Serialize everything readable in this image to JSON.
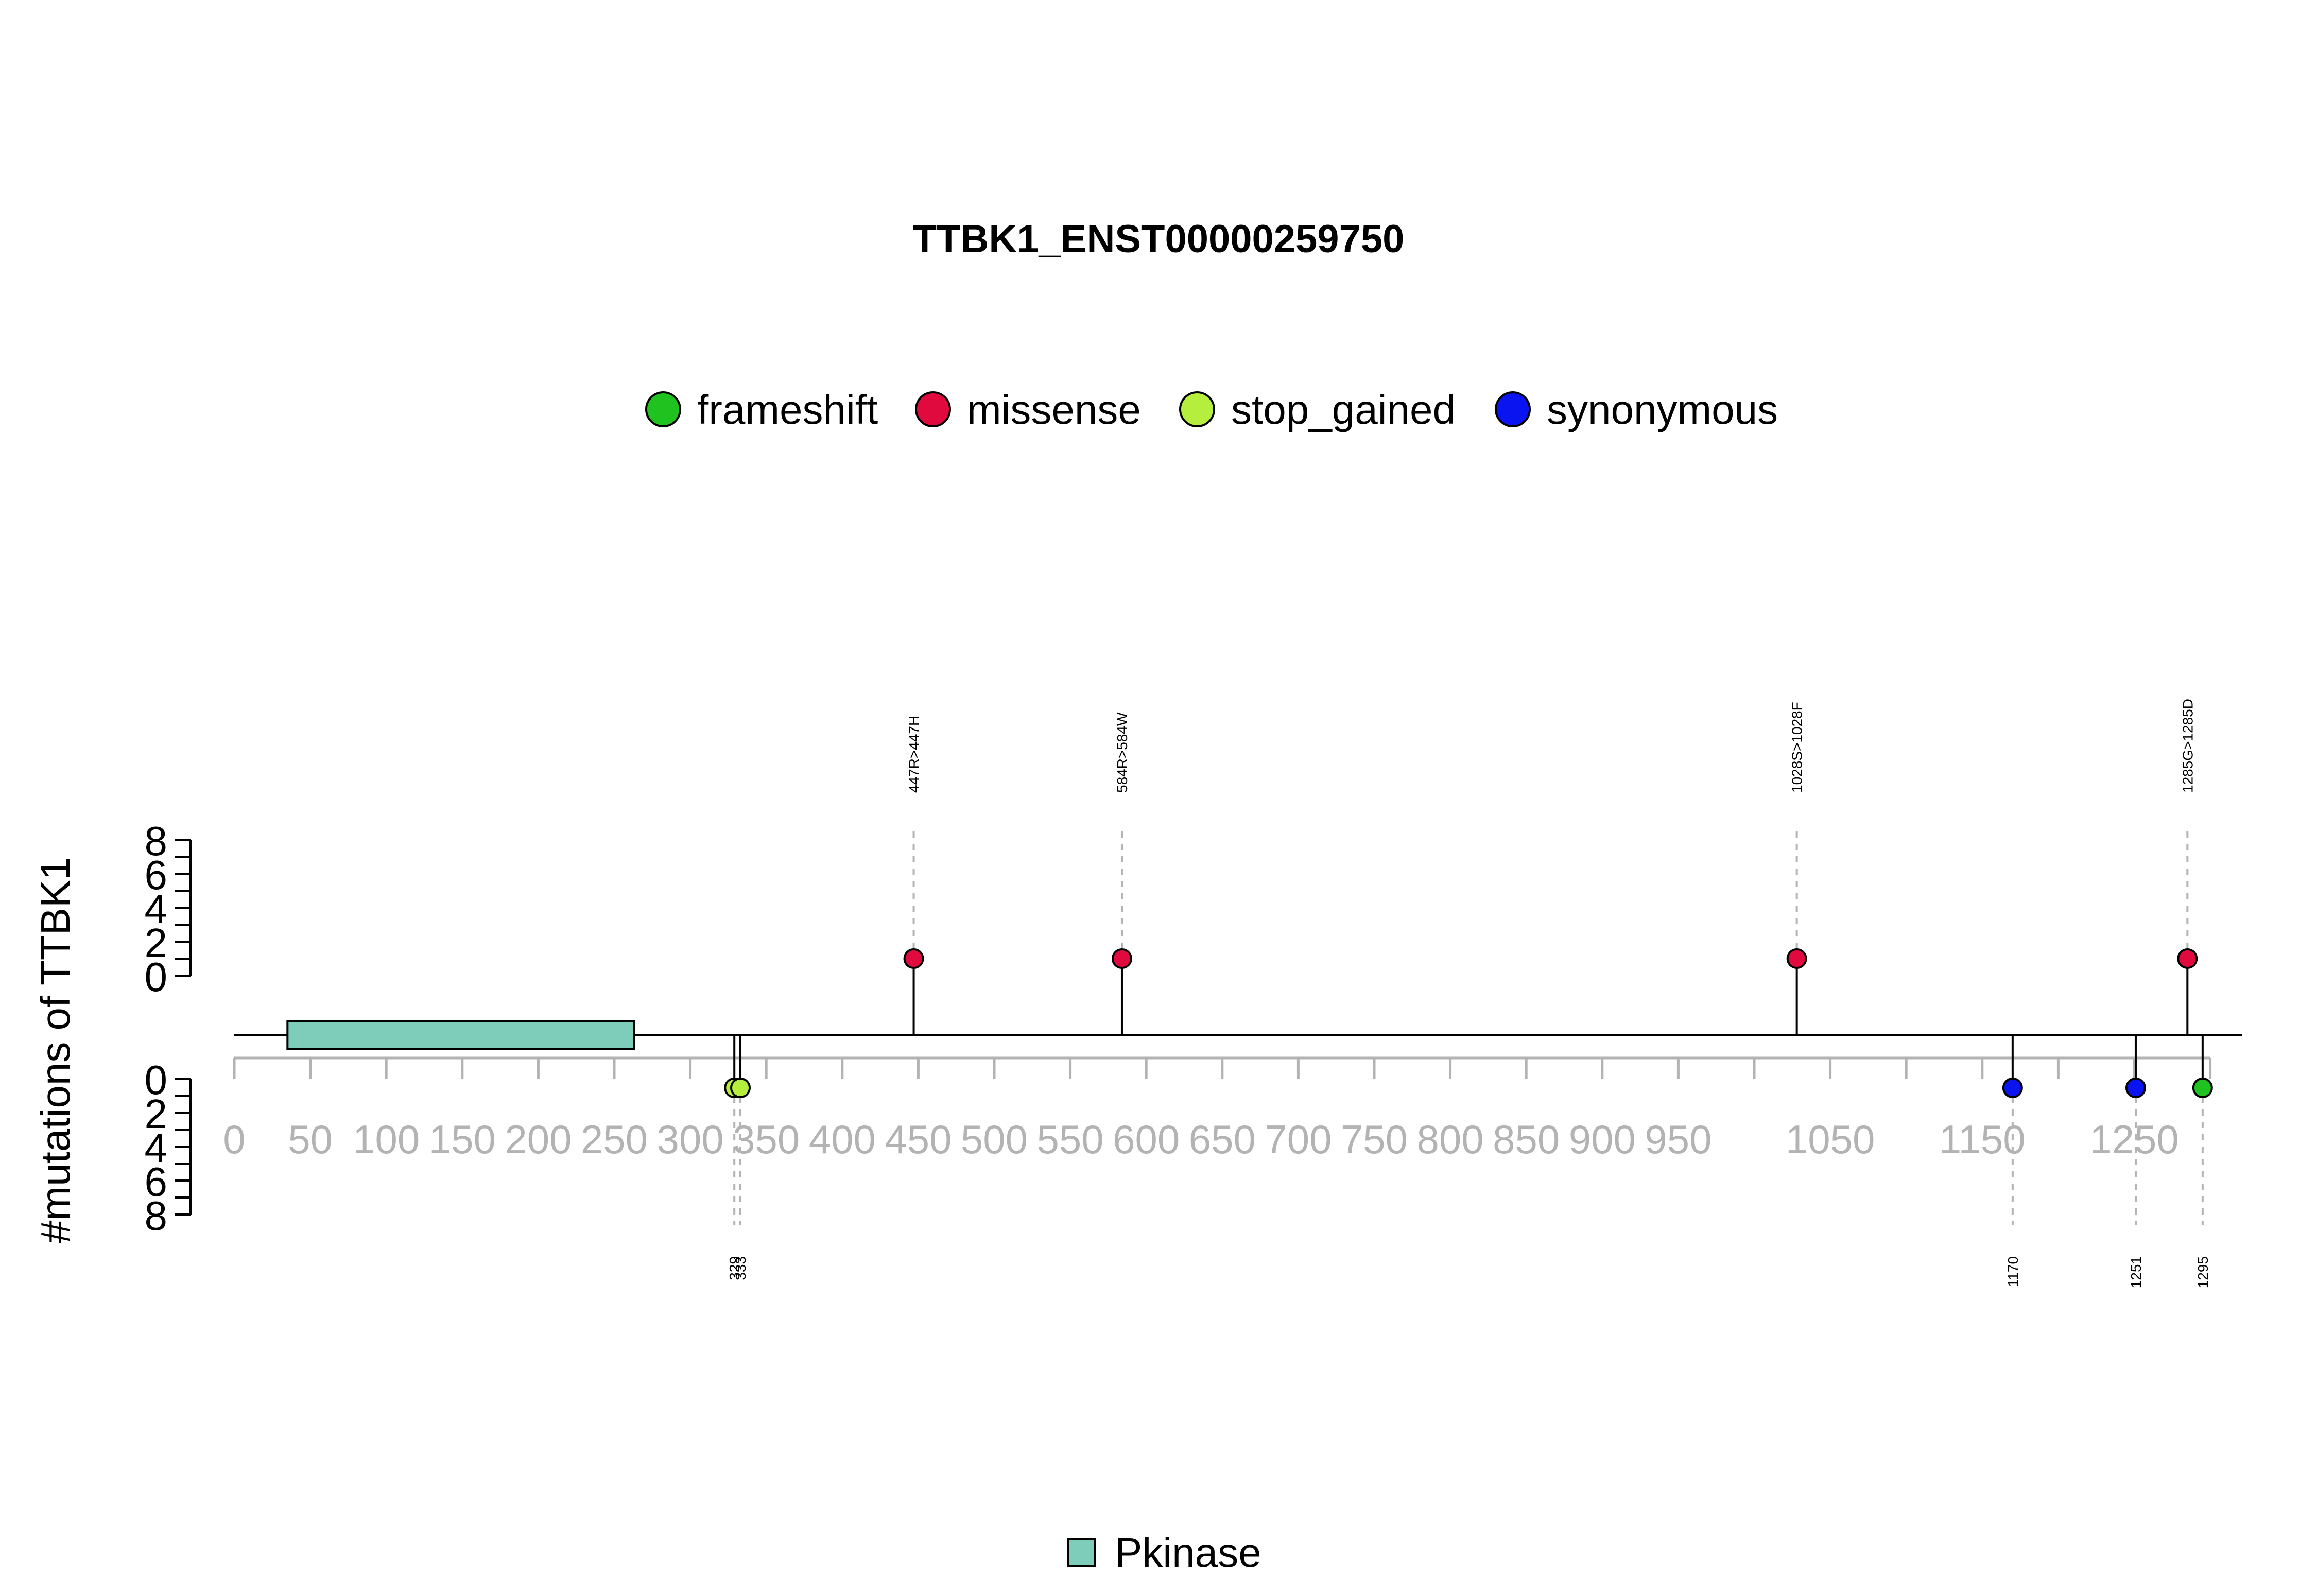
{
  "chart_data": {
    "type": "lollipop",
    "title": "TTBK1_ENST00000259750",
    "ylabel": "#mutations of TTBK1",
    "protein_length": 1321,
    "xaxis_ticks": [
      "0",
      "50",
      "100",
      "150",
      "200",
      "250",
      "300",
      "350",
      "400",
      "450",
      "500",
      "550",
      "600",
      "650",
      "700",
      "750",
      "800",
      "850",
      "900",
      "950",
      "1050",
      "1150",
      "1250"
    ],
    "yaxis_ticks_upper": [
      "0",
      "2",
      "4",
      "6",
      "8"
    ],
    "yaxis_ticks_lower": [
      "0",
      "2",
      "4",
      "6",
      "8"
    ],
    "legend": [
      {
        "name": "frameshift",
        "color": "#1fc21f"
      },
      {
        "name": "missense",
        "color": "#e00a3f"
      },
      {
        "name": "stop_gained",
        "color": "#b5ee3c"
      },
      {
        "name": "synonymous",
        "color": "#0a14f0"
      }
    ],
    "domains": [
      {
        "name": "Pkinase",
        "start": 35,
        "end": 263,
        "color": "#7ecdbb"
      }
    ],
    "mutations_upper": [
      {
        "position": 447,
        "label": "447R>447H",
        "type": "missense",
        "count": 1
      },
      {
        "position": 584,
        "label": "584R>584W",
        "type": "missense",
        "count": 1
      },
      {
        "position": 1028,
        "label": "1028S>1028F",
        "type": "missense",
        "count": 1
      },
      {
        "position": 1285,
        "label": "1285G>1285D",
        "type": "missense",
        "count": 1
      }
    ],
    "mutations_lower": [
      {
        "position": 329,
        "label": "329",
        "type": "stop_gained",
        "count": 1
      },
      {
        "position": 333,
        "label": "333",
        "type": "stop_gained",
        "count": 1
      },
      {
        "position": 1170,
        "label": "1170",
        "type": "synonymous",
        "count": 1
      },
      {
        "position": 1251,
        "label": "1251",
        "type": "synonymous",
        "count": 1
      },
      {
        "position": 1295,
        "label": "1295",
        "type": "frameshift",
        "count": 1
      }
    ]
  }
}
